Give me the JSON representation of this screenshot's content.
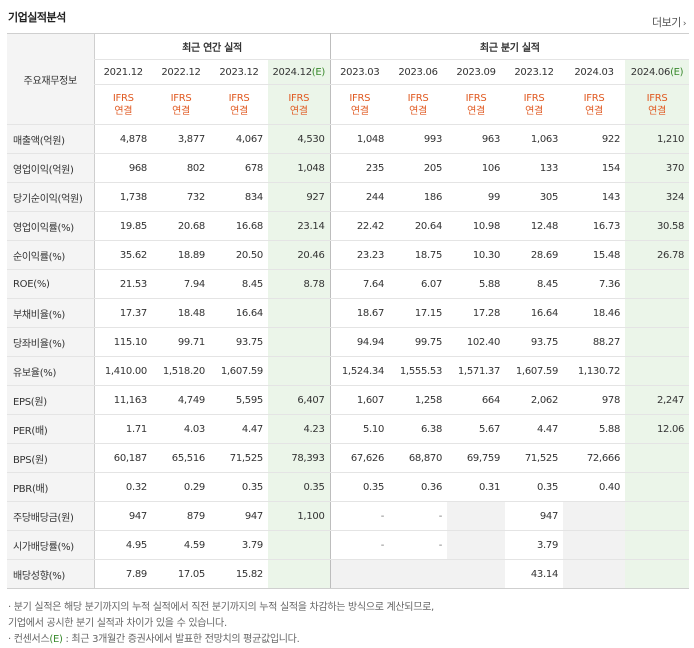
{
  "header": {
    "title": "기업실적분석",
    "more_label": "더보기",
    "more_icon": "chevron-right-icon"
  },
  "table": {
    "corner_label": "주요재무정보",
    "group_annual": "최근 연간 실적",
    "group_quarter": "최근 분기 실적",
    "ifrs_line1": "IFRS",
    "ifrs_line2": "연결",
    "annual_dates": [
      "2021.12",
      "2022.12",
      "2023.12",
      "2024.12"
    ],
    "annual_est_suffix": "(E)",
    "quarter_dates": [
      "2023.03",
      "2023.06",
      "2023.09",
      "2023.12",
      "2024.03",
      "2024.06"
    ],
    "quarter_est_suffix": "(E)",
    "rows": [
      {
        "label": "매출액(억원)",
        "values": [
          "4,878",
          "3,877",
          "4,067",
          "4,530",
          "1,048",
          "993",
          "963",
          "1,063",
          "922",
          "1,210"
        ]
      },
      {
        "label": "영업이익(억원)",
        "values": [
          "968",
          "802",
          "678",
          "1,048",
          "235",
          "205",
          "106",
          "133",
          "154",
          "370"
        ]
      },
      {
        "label": "당기순이익(억원)",
        "values": [
          "1,738",
          "732",
          "834",
          "927",
          "244",
          "186",
          "99",
          "305",
          "143",
          "324"
        ]
      },
      {
        "label": "영업이익률(%)",
        "values": [
          "19.85",
          "20.68",
          "16.68",
          "23.14",
          "22.42",
          "20.64",
          "10.98",
          "12.48",
          "16.73",
          "30.58"
        ]
      },
      {
        "label": "순이익률(%)",
        "values": [
          "35.62",
          "18.89",
          "20.50",
          "20.46",
          "23.23",
          "18.75",
          "10.30",
          "28.69",
          "15.48",
          "26.78"
        ]
      },
      {
        "label": "ROE(%)",
        "values": [
          "21.53",
          "7.94",
          "8.45",
          "8.78",
          "7.64",
          "6.07",
          "5.88",
          "8.45",
          "7.36",
          ""
        ]
      },
      {
        "label": "부채비율(%)",
        "values": [
          "17.37",
          "18.48",
          "16.64",
          "",
          "18.67",
          "17.15",
          "17.28",
          "16.64",
          "18.46",
          ""
        ]
      },
      {
        "label": "당좌비율(%)",
        "values": [
          "115.10",
          "99.71",
          "93.75",
          "",
          "94.94",
          "99.75",
          "102.40",
          "93.75",
          "88.27",
          ""
        ]
      },
      {
        "label": "유보율(%)",
        "values": [
          "1,410.00",
          "1,518.20",
          "1,607.59",
          "",
          "1,524.34",
          "1,555.53",
          "1,571.37",
          "1,607.59",
          "1,130.72",
          ""
        ]
      },
      {
        "label": "EPS(원)",
        "values": [
          "11,163",
          "4,749",
          "5,595",
          "6,407",
          "1,607",
          "1,258",
          "664",
          "2,062",
          "978",
          "2,247"
        ]
      },
      {
        "label": "PER(배)",
        "values": [
          "1.71",
          "4.03",
          "4.47",
          "4.23",
          "5.10",
          "6.38",
          "5.67",
          "4.47",
          "5.88",
          "12.06"
        ]
      },
      {
        "label": "BPS(원)",
        "values": [
          "60,187",
          "65,516",
          "71,525",
          "78,393",
          "67,626",
          "68,870",
          "69,759",
          "71,525",
          "72,666",
          ""
        ]
      },
      {
        "label": "PBR(배)",
        "values": [
          "0.32",
          "0.29",
          "0.35",
          "0.35",
          "0.35",
          "0.36",
          "0.31",
          "0.35",
          "0.40",
          ""
        ]
      },
      {
        "label": "주당배당금(원)",
        "values": [
          "947",
          "879",
          "947",
          "1,100",
          "-",
          "-",
          "",
          "947",
          "",
          ""
        ]
      },
      {
        "label": "시가배당률(%)",
        "values": [
          "4.95",
          "4.59",
          "3.79",
          "",
          "-",
          "-",
          "",
          "3.79",
          "",
          ""
        ]
      },
      {
        "label": "배당성향(%)",
        "values": [
          "7.89",
          "17.05",
          "15.82",
          "",
          "",
          "",
          "",
          "43.14",
          "",
          ""
        ]
      }
    ]
  },
  "notes": {
    "line1": "· 분기 실적은 해당 분기까지의 누적 실적에서 직전 분기까지의 누적 실적을 차감하는 방식으로 계산되므로,",
    "line2": "   기업에서 공시한 분기 실적과 차이가 있을 수 있습니다.",
    "line3_prefix": "· 컨센서스",
    "line3_est": "(E)",
    "line3_suffix": " : 최근 3개월간 증권사에서 발표한 전망치의 평균값입니다."
  },
  "colors": {
    "ifrs": "#e05a22",
    "estimate_bg": "#ebf5e9",
    "estimate_text": "#3a8a2e",
    "label_bg": "#f4f4f4"
  }
}
